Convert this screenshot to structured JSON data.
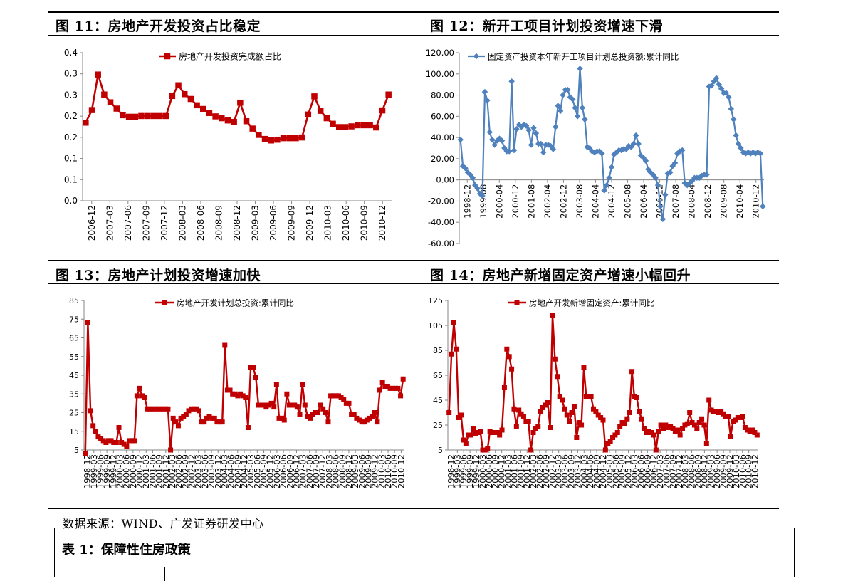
{
  "figures": {
    "fig11_title": "图 11：房地产开发投资占比稳定",
    "fig12_title": "图 12：新开工项目计划投资增速下滑",
    "fig13_title": "图 13：房地产计划投资增速加快",
    "fig14_title": "图 14：房地产新增固定资产增速小幅回升"
  },
  "source_note": "数据来源：WIND、广发证券研发中心",
  "table": {
    "title": "表 1：保障性住房政策"
  },
  "colors": {
    "red_series": "#c00000",
    "blue_series": "#4f81bd",
    "axis": "#868686"
  },
  "chart_data": [
    {
      "type": "line",
      "title": "",
      "legend_position": "top",
      "ylim": [
        0,
        0.4
      ],
      "y_ticks": [
        "0.4",
        "0.3",
        "0.3",
        "0.2",
        "0.2",
        "0.1",
        "0.1",
        "0.0"
      ],
      "x_labels": [
        "2006-12",
        "2007-03",
        "2007-06",
        "2007-09",
        "2007-12",
        "2008-03",
        "2008-06",
        "2008-09",
        "2008-12",
        "2009-03",
        "2009-06",
        "2009-09",
        "2009-12",
        "2010-03",
        "2010-06",
        "2010-09",
        "2010-12"
      ],
      "series": [
        {
          "name": "房地产开发投资完成额占比",
          "values": [
            0.211,
            0.245,
            0.341,
            0.287,
            0.266,
            0.249,
            0.231,
            0.227,
            0.227,
            0.229,
            0.229,
            0.229,
            0.229,
            0.229,
            0.283,
            0.312,
            0.288,
            0.275,
            0.258,
            0.248,
            0.237,
            0.228,
            0.223,
            0.217,
            0.213,
            0.265,
            0.215,
            0.195,
            0.178,
            0.167,
            0.163,
            0.165,
            0.169,
            0.169,
            0.169,
            0.171,
            0.233,
            0.282,
            0.243,
            0.223,
            0.208,
            0.199,
            0.199,
            0.201,
            0.204,
            0.204,
            0.204,
            0.198,
            0.244,
            0.287
          ]
        }
      ]
    },
    {
      "type": "line",
      "title": "",
      "legend_position": "top",
      "ylim": [
        -60,
        120
      ],
      "y_ticks": [
        "120.00",
        "100.00",
        "80.00",
        "60.00",
        "40.00",
        "20.00",
        "0.00",
        "-20.00",
        "-40.00",
        "-60.00"
      ],
      "x_labels": [
        "1998-12",
        "1999-08",
        "2000-04",
        "2000-12",
        "2001-08",
        "2002-04",
        "2002-12",
        "2003-08",
        "2004-04",
        "2004-12",
        "2005-08",
        "2006-04",
        "2006-12",
        "2007-08",
        "2008-04",
        "2008-12",
        "2009-08",
        "2010-04",
        "2010-12"
      ],
      "series": [
        {
          "name": "固定资产投资本年新开工项目计划总投资额:累计同比",
          "values": [
            38,
            13,
            11,
            7,
            5,
            2,
            -5,
            -8,
            -13,
            -15,
            83,
            75,
            45,
            38,
            33,
            37,
            39,
            37,
            30,
            27,
            27,
            93,
            28,
            48,
            52,
            50,
            52,
            51,
            47,
            33,
            49,
            44,
            34,
            34,
            26,
            33,
            33,
            32,
            29,
            50,
            70,
            65,
            80,
            85,
            85,
            78,
            76,
            68,
            60,
            105,
            68,
            57,
            31,
            30,
            27,
            26,
            27,
            27,
            25,
            -10,
            -5,
            2,
            12,
            24,
            26,
            28,
            28,
            29,
            29,
            32,
            31,
            34,
            42,
            34,
            23,
            21,
            18,
            10,
            7,
            5,
            2,
            -5,
            -25,
            -37,
            -14,
            6,
            7,
            13,
            16,
            25,
            27,
            28,
            -3,
            -5,
            -3,
            -1,
            2,
            2,
            2,
            4,
            5,
            5,
            88,
            89,
            93,
            96,
            90,
            86,
            82,
            82,
            78,
            67,
            57,
            42,
            34,
            30,
            26,
            25,
            26,
            25,
            26,
            25,
            26,
            25,
            -25
          ]
        }
      ]
    },
    {
      "type": "line",
      "title": "",
      "legend_position": "top",
      "ylim": [
        5,
        85
      ],
      "y_ticks": [
        "85",
        "75",
        "65",
        "55",
        "45",
        "35",
        "25",
        "15",
        "5"
      ],
      "x_labels": [
        "1998-12",
        "1999-03",
        "1999-06",
        "1999-09",
        "1999-12",
        "2000-03",
        "2000-06",
        "2000-09",
        "2000-12",
        "2001-03",
        "2001-06",
        "2001-09",
        "2001-12",
        "2002-03",
        "2002-06",
        "2002-09",
        "2002-12",
        "2003-03",
        "2003-06",
        "2003-09",
        "2003-12",
        "2004-03",
        "2004-06",
        "2004-09",
        "2004-12",
        "2005-03",
        "2005-06",
        "2005-09",
        "2005-12",
        "2006-03",
        "2006-06",
        "2006-09",
        "2006-12",
        "2007-03",
        "2007-06",
        "2007-09",
        "2007-12",
        "2008-03",
        "2008-06",
        "2008-09",
        "2008-12",
        "2009-03",
        "2009-06",
        "2009-09",
        "2009-12",
        "2010-03",
        "2010-06",
        "2010-09",
        "2010-12"
      ],
      "series": [
        {
          "name": "房地产开发计划总投资:累计同比",
          "values": [
            3,
            73,
            26,
            18,
            15,
            12,
            11,
            10,
            9,
            10,
            10,
            9,
            9,
            17,
            9,
            8,
            7,
            10,
            10,
            10,
            34,
            38,
            34,
            33,
            27,
            27,
            27,
            27,
            27,
            27,
            27,
            27,
            27,
            5,
            22,
            20,
            18,
            22,
            23,
            24,
            26,
            27,
            27,
            27,
            26,
            20,
            20,
            22,
            23,
            22,
            22,
            20,
            20,
            20,
            61,
            37,
            37,
            35,
            35,
            34,
            35,
            34,
            33,
            17,
            49,
            49,
            44,
            29,
            29,
            29,
            28,
            29,
            30,
            28,
            40,
            22,
            22,
            21,
            35,
            29,
            29,
            29,
            28,
            24,
            40,
            29,
            23,
            22,
            24,
            25,
            25,
            29,
            27,
            25,
            20,
            34,
            34,
            34,
            34,
            33,
            32,
            30,
            30,
            24,
            24,
            22,
            21,
            20,
            20,
            21,
            22,
            23,
            25,
            20,
            37,
            41,
            39,
            39,
            38,
            38,
            38,
            38,
            34,
            43
          ]
        }
      ]
    },
    {
      "type": "line",
      "title": "",
      "legend_position": "top",
      "ylim": [
        5,
        125
      ],
      "y_ticks": [
        "125",
        "105",
        "85",
        "65",
        "45",
        "25",
        "5"
      ],
      "x_labels": [
        "1998-12",
        "1999-03",
        "1999-06",
        "1999-09",
        "1999-12",
        "2000-03",
        "2000-06",
        "2000-09",
        "2000-12",
        "2001-03",
        "2001-06",
        "2001-09",
        "2001-12",
        "2002-03",
        "2002-06",
        "2002-09",
        "2002-12",
        "2003-03",
        "2003-06",
        "2003-09",
        "2003-12",
        "2004-03",
        "2004-06",
        "2004-09",
        "2004-12",
        "2005-03",
        "2005-06",
        "2005-09",
        "2005-12",
        "2006-03",
        "2006-06",
        "2006-09",
        "2006-12",
        "2007-03",
        "2007-06",
        "2007-09",
        "2007-12",
        "2008-03",
        "2008-06",
        "2008-09",
        "2008-12",
        "2009-03",
        "2009-06",
        "2009-09",
        "2009-12",
        "2010-03",
        "2010-06",
        "2010-09",
        "2010-12"
      ],
      "series": [
        {
          "name": "房地产开发新增固定资产:累计同比",
          "values": [
            35,
            82,
            107,
            86,
            31,
            33,
            13,
            10,
            17,
            17,
            22,
            18,
            19,
            20,
            5,
            5,
            6,
            20,
            19,
            19,
            19,
            17,
            21,
            55,
            86,
            80,
            70,
            38,
            24,
            37,
            34,
            32,
            28,
            28,
            5,
            19,
            22,
            24,
            36,
            39,
            41,
            43,
            23,
            113,
            78,
            64,
            48,
            45,
            38,
            33,
            28,
            35,
            40,
            15,
            27,
            25,
            71,
            48,
            48,
            48,
            38,
            36,
            33,
            31,
            29,
            5,
            10,
            12,
            15,
            17,
            19,
            24,
            27,
            26,
            30,
            35,
            68,
            48,
            47,
            36,
            30,
            22,
            19,
            20,
            19,
            17,
            5,
            20,
            25,
            22,
            25,
            23,
            24,
            22,
            20,
            21,
            17,
            22,
            25,
            26,
            35,
            27,
            25,
            22,
            27,
            30,
            25,
            10,
            45,
            37,
            36,
            36,
            35,
            36,
            34,
            32,
            32,
            16,
            28,
            29,
            31,
            31,
            32,
            23,
            21,
            20,
            21,
            19,
            17
          ]
        }
      ]
    }
  ]
}
